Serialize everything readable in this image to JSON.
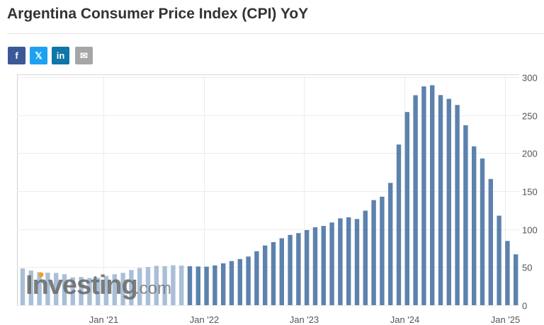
{
  "page": {
    "title": "Argentina Consumer Price Index (CPI) YoY"
  },
  "share": [
    {
      "name": "facebook",
      "glyph": "f",
      "color": "#3b5998"
    },
    {
      "name": "x-twitter",
      "glyph": "𝕏",
      "color": "#1da1f2"
    },
    {
      "name": "linkedin",
      "glyph": "in",
      "color": "#0e76a8"
    },
    {
      "name": "email",
      "glyph": "✉",
      "color": "#a6a6a6"
    }
  ],
  "watermark": {
    "brand": "Investing",
    "suffix": ".com"
  },
  "colors": {
    "bar": "#5c82ad",
    "bar_under_watermark": "#a9bfd8",
    "grid": "#ececec",
    "axis_text": "#555555"
  },
  "chart_data": {
    "type": "bar",
    "title": "Argentina Consumer Price Index (CPI) YoY",
    "xlabel": "",
    "ylabel": "",
    "ylim": [
      0,
      300
    ],
    "yticks": [
      0,
      50,
      100,
      150,
      200,
      250,
      300
    ],
    "y_axis_side": "right",
    "grid": true,
    "legend": "none",
    "x_tick_labels": [
      {
        "label": "Jan '21",
        "index": 10
      },
      {
        "label": "Jan '22",
        "index": 22
      },
      {
        "label": "Jan '23",
        "index": 34
      },
      {
        "label": "Jan '24",
        "index": 46
      },
      {
        "label": "Jan '25",
        "index": 58
      }
    ],
    "categories": [
      "Mar '20",
      "Apr '20",
      "May '20",
      "Jun '20",
      "Jul '20",
      "Aug '20",
      "Sep '20",
      "Oct '20",
      "Nov '20",
      "Dec '20",
      "Jan '21",
      "Feb '21",
      "Mar '21",
      "Apr '21",
      "May '21",
      "Jun '21",
      "Jul '21",
      "Aug '21",
      "Sep '21",
      "Oct '21",
      "Nov '21",
      "Dec '21",
      "Jan '22",
      "Feb '22",
      "Mar '22",
      "Apr '22",
      "May '22",
      "Jun '22",
      "Jul '22",
      "Aug '22",
      "Sep '22",
      "Oct '22",
      "Nov '22",
      "Dec '22",
      "Jan '23",
      "Feb '23",
      "Mar '23",
      "Apr '23",
      "May '23",
      "Jun '23",
      "Jul '23",
      "Aug '23",
      "Sep '23",
      "Oct '23",
      "Nov '23",
      "Dec '23",
      "Jan '24",
      "Feb '24",
      "Mar '24",
      "Apr '24",
      "May '24",
      "Jun '24",
      "Jul '24",
      "Aug '24",
      "Sep '24",
      "Oct '24",
      "Nov '24",
      "Dec '24",
      "Jan '25",
      "Feb '25"
    ],
    "values": [
      48.4,
      45.6,
      43.4,
      42.8,
      42.4,
      40.7,
      36.6,
      37.2,
      35.8,
      36.1,
      38.5,
      40.7,
      42.6,
      46.3,
      48.8,
      50.2,
      51.8,
      51.4,
      52.5,
      52.1,
      51.2,
      50.9,
      50.7,
      52.3,
      55.1,
      58.0,
      60.7,
      64.0,
      71.0,
      78.5,
      83.0,
      88.0,
      92.4,
      94.8,
      98.8,
      102.5,
      104.3,
      108.8,
      114.2,
      115.6,
      113.4,
      124.4,
      138.3,
      142.7,
      160.9,
      211.4,
      254.2,
      276.2,
      287.9,
      289.4,
      276.4,
      271.5,
      263.4,
      236.7,
      209.0,
      193.0,
      166.0,
      117.8,
      84.5,
      66.9
    ]
  }
}
